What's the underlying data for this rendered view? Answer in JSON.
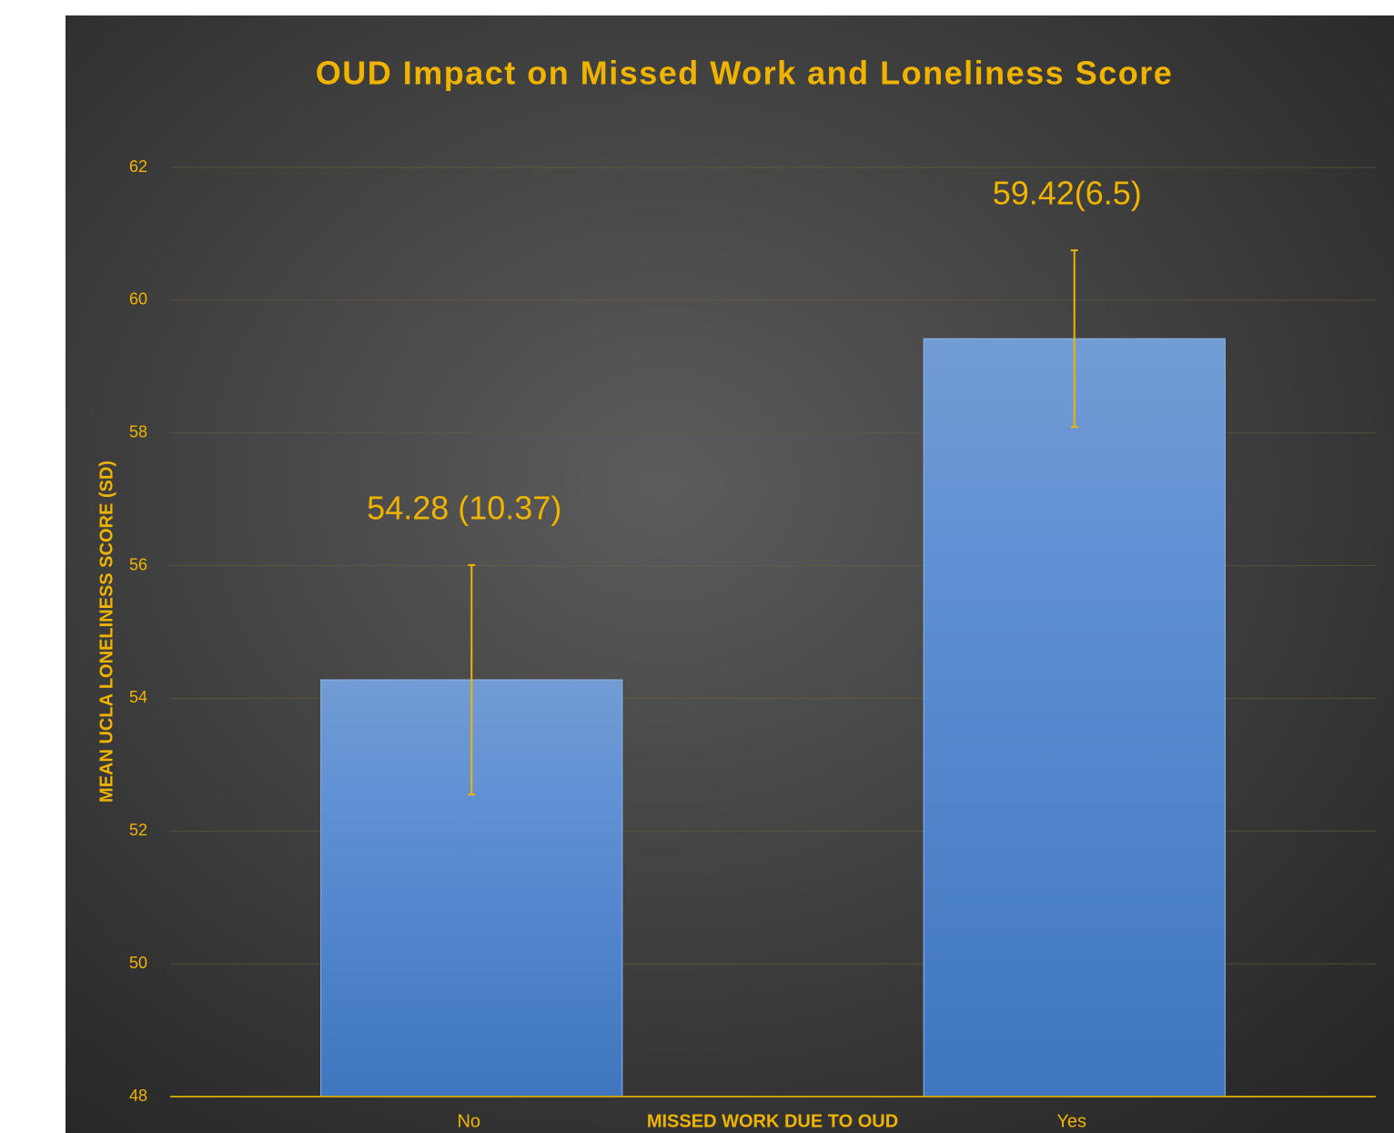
{
  "chart_data": {
    "type": "bar",
    "title": "OUD Impact on Missed Work and Loneliness Score",
    "xlabel": "MISSED WORK DUE TO OUD",
    "ylabel": "MEAN UCLA LONELINESS SCORE (SD)",
    "categories": [
      "No",
      "Yes"
    ],
    "values": [
      54.28,
      59.42
    ],
    "value_labels": [
      "54.28 (10.37)",
      "59.42(6.5)"
    ],
    "errors": [
      1.73,
      1.33
    ],
    "color": "#5b8fd2",
    "ylim": [
      48,
      62
    ],
    "yticks": [
      48,
      50,
      52,
      54,
      56,
      58,
      60,
      62
    ],
    "grid": true
  }
}
